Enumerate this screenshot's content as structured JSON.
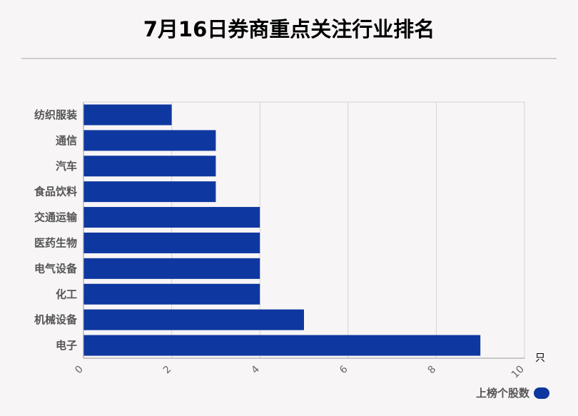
{
  "title": "7月16日券商重点关注行业排名",
  "chart_data": {
    "type": "bar",
    "orientation": "horizontal",
    "categories": [
      "纺织服装",
      "通信",
      "汽车",
      "食品饮料",
      "交通运输",
      "医药生物",
      "电气设备",
      "化工",
      "机械设备",
      "电子"
    ],
    "series": [
      {
        "name": "上榜个股数",
        "values": [
          2,
          3,
          3,
          3,
          4,
          4,
          4,
          4,
          5,
          9
        ]
      }
    ],
    "xlim": [
      0,
      10
    ],
    "xticks": [
      "0",
      "2",
      "4",
      "6",
      "8",
      "10"
    ],
    "xunit": "只",
    "grid": true,
    "legend_position": "bottom-right",
    "bar_color": "#0e38a0"
  }
}
